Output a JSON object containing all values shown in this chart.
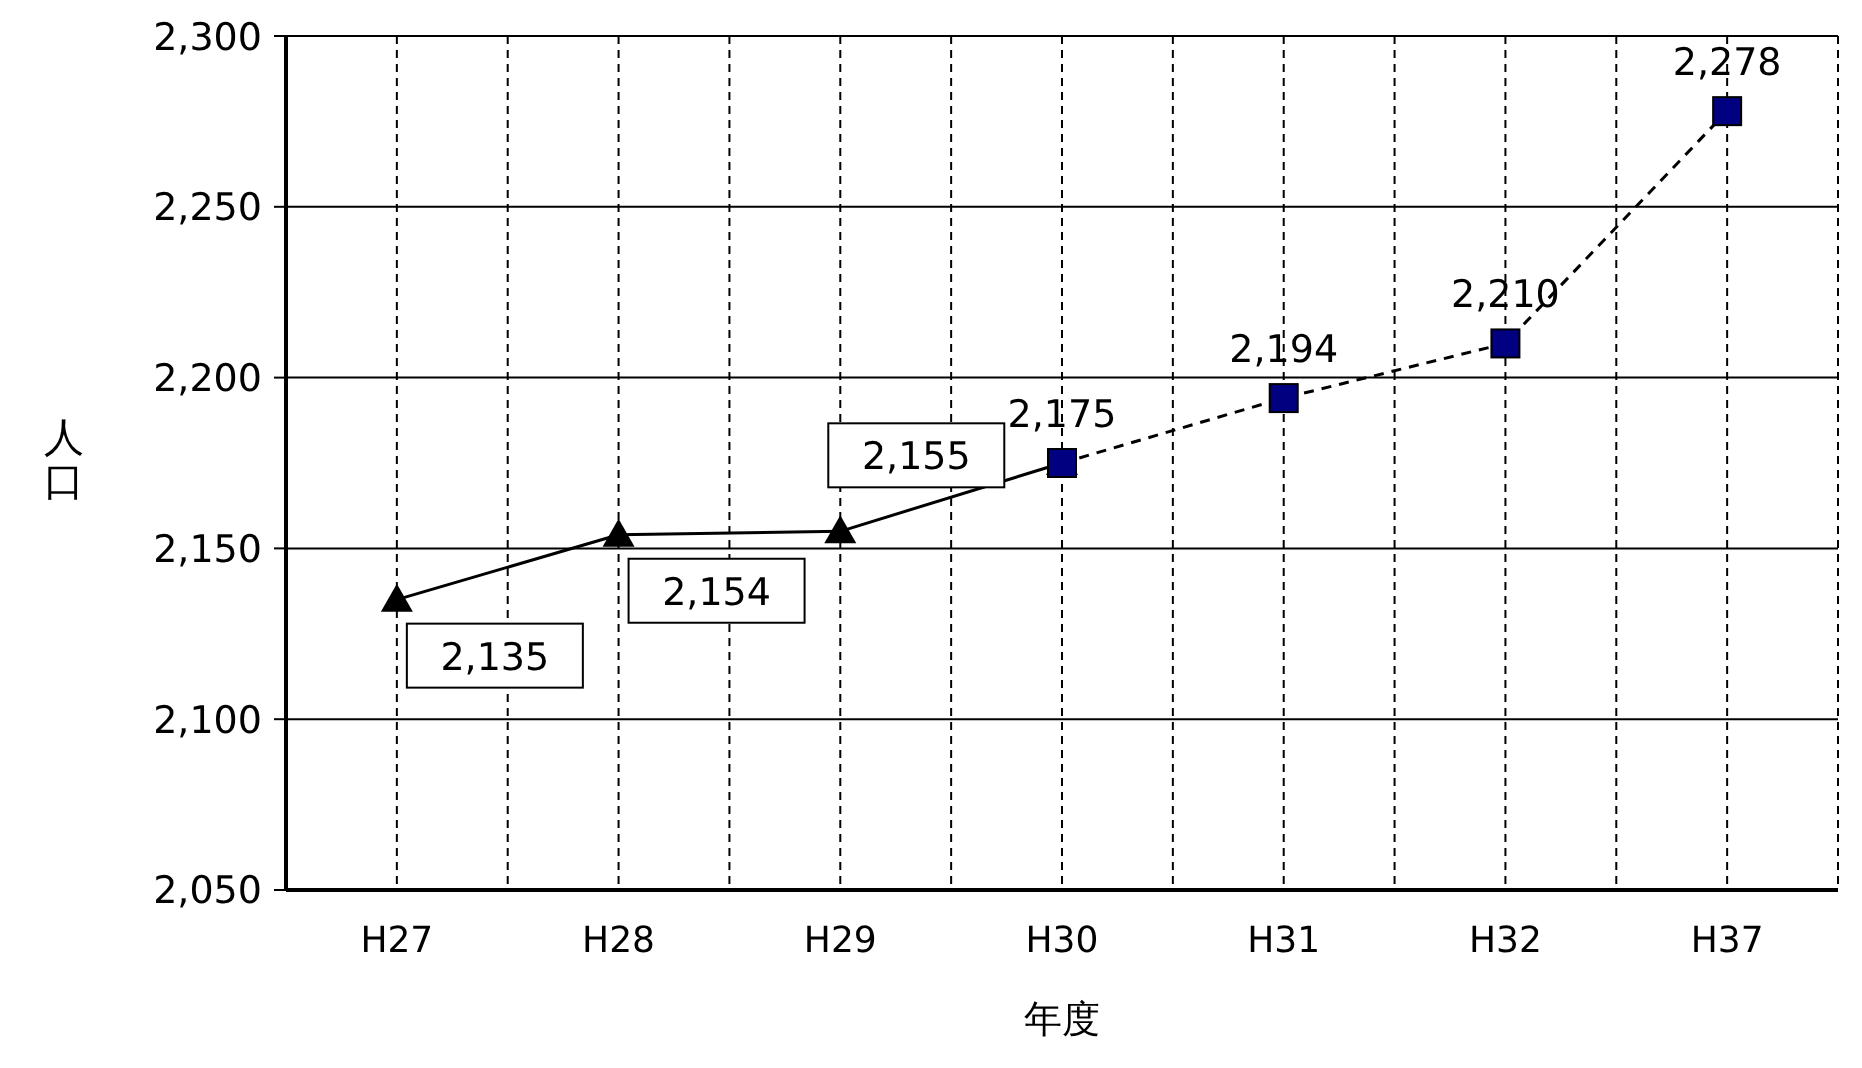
{
  "chart_data": {
    "type": "line",
    "xlabel": "年度",
    "ylabel": "人口",
    "categories": [
      "H27",
      "H28",
      "H29",
      "H30",
      "H31",
      "H32",
      "H37"
    ],
    "series": [
      {
        "color": "#000000",
        "marker": "triangle",
        "line_style": "solid",
        "values": [
          2135,
          2154,
          2155,
          2175,
          null,
          null,
          null
        ],
        "value_labels": [
          "2,135",
          "2,154",
          "2,155",
          null,
          null,
          null,
          null
        ]
      },
      {
        "color": "#000080",
        "marker": "square",
        "line_style": "dashed",
        "values": [
          null,
          null,
          null,
          2175,
          2194,
          2210,
          2278
        ],
        "value_labels": [
          null,
          null,
          null,
          "2,175",
          "2,194",
          "2,210",
          "2,278"
        ]
      }
    ],
    "ylim": [
      2050,
      2300
    ],
    "yticks": [
      {
        "value": 2050,
        "label": "2,050"
      },
      {
        "value": 2100,
        "label": "2,100"
      },
      {
        "value": 2150,
        "label": "2,150"
      },
      {
        "value": 2200,
        "label": "2,200"
      },
      {
        "value": 2250,
        "label": "2,250"
      },
      {
        "value": 2300,
        "label": "2,300"
      }
    ],
    "grid": true,
    "legend": false
  }
}
